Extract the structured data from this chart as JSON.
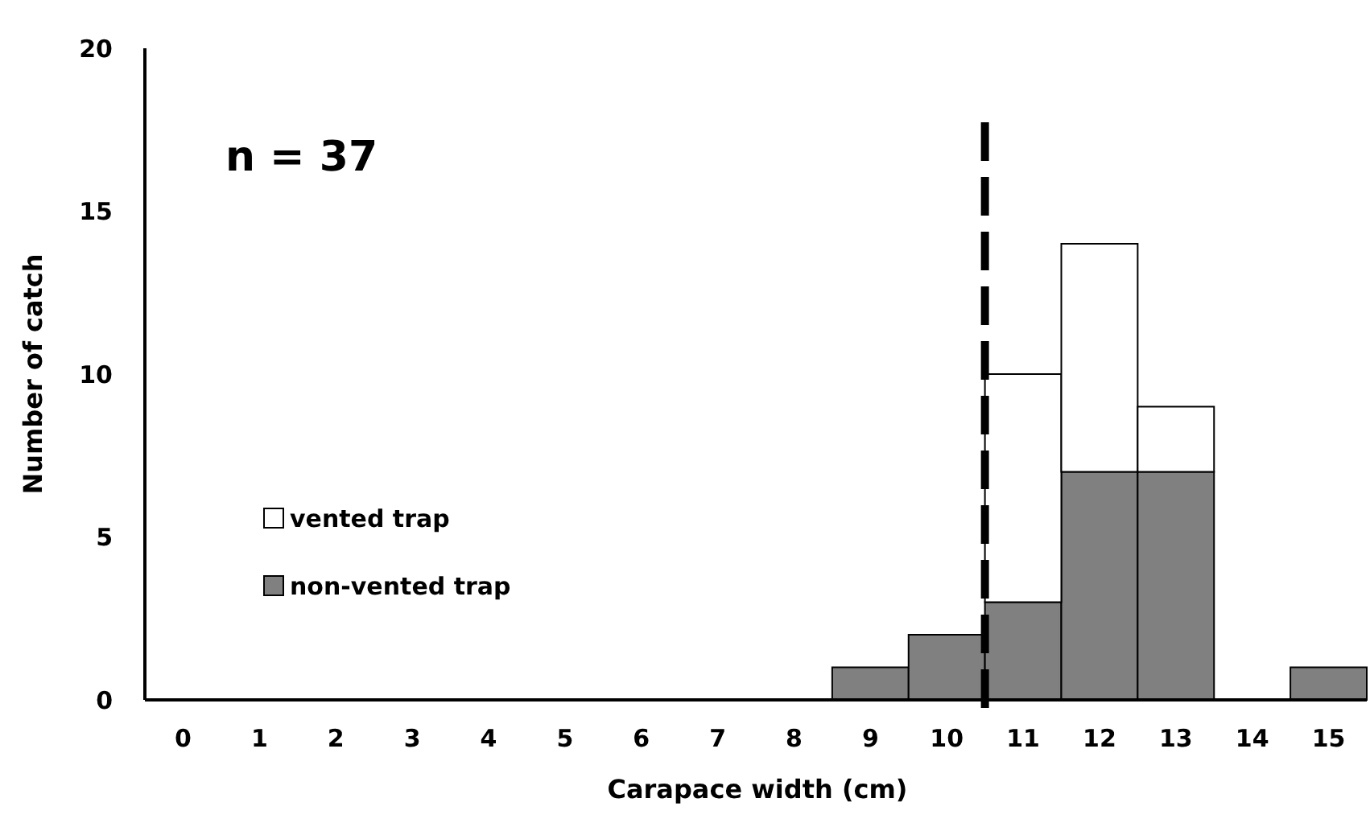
{
  "chart_data": {
    "type": "bar",
    "xlabel": "Carapace width (cm)",
    "ylabel": "Number of catch",
    "x": [
      0,
      1,
      2,
      3,
      4,
      5,
      6,
      7,
      8,
      9,
      10,
      11,
      12,
      13,
      14,
      15
    ],
    "xlim": [
      -0.5,
      15.5
    ],
    "xticks": [
      0,
      1,
      2,
      3,
      4,
      5,
      6,
      7,
      8,
      9,
      10,
      11,
      12,
      13,
      14,
      15
    ],
    "ylim": [
      0,
      20
    ],
    "yticks": [
      0,
      5,
      10,
      15,
      20
    ],
    "stacked": true,
    "grid": false,
    "legend": "left",
    "series": [
      {
        "name": "non-vented trap",
        "color": "#808080",
        "values": [
          0,
          0,
          0,
          0,
          0,
          0,
          0,
          0,
          0,
          1,
          2,
          3,
          7,
          7,
          0,
          1
        ]
      },
      {
        "name": "vented trap",
        "color": "#ffffff",
        "values": [
          0,
          0,
          0,
          0,
          0,
          0,
          0,
          0,
          0,
          0,
          0,
          7,
          7,
          2,
          0,
          0
        ]
      }
    ],
    "ref_lines": [
      {
        "axis": "x",
        "value": 10.5,
        "color": "#000000",
        "line_style": "dashed"
      }
    ],
    "annotations": [
      "n = 37"
    ]
  }
}
